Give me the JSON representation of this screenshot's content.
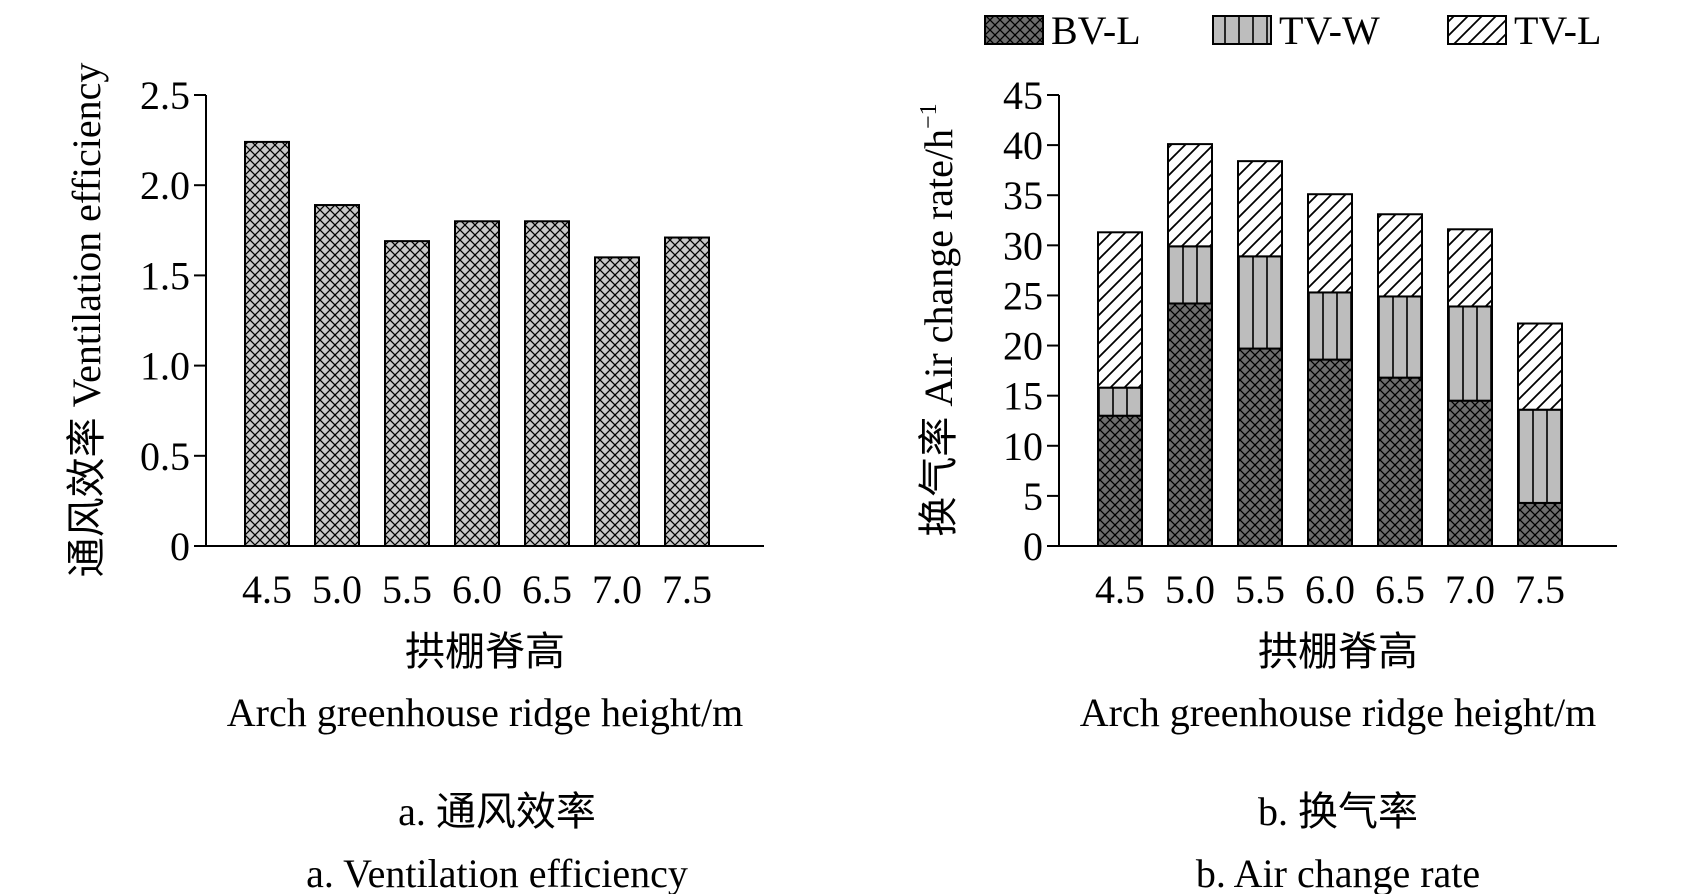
{
  "colors": {
    "bar_a_fill": "#c8c8c8",
    "bvl_fill": "#6e6e6e",
    "tvw_fill": "#bdbdbd",
    "tvl_fill": "#ffffff",
    "stroke": "#000000"
  },
  "chart_data": [
    {
      "id": "a",
      "type": "bar",
      "title": "a. 通风效率",
      "subtitle": "a. Ventilation efficiency",
      "xlabel_cn": "拱棚脊高",
      "xlabel_en": "Arch greenhouse ridge height/m",
      "ylabel": "通风效率 Ventilation efficiency",
      "categories": [
        "4.5",
        "5.0",
        "5.5",
        "6.0",
        "6.5",
        "7.0",
        "7.5"
      ],
      "values": [
        2.24,
        1.89,
        1.69,
        1.8,
        1.8,
        1.6,
        1.71
      ],
      "yticks": [
        "0",
        "0.5",
        "1.0",
        "1.5",
        "2.0",
        "2.5"
      ],
      "ylim": [
        0,
        2.5
      ]
    },
    {
      "id": "b",
      "type": "bar",
      "stacked": true,
      "title": "b. 换气率",
      "subtitle": "b. Air change rate",
      "xlabel_cn": "拱棚脊高",
      "xlabel_en": "Arch greenhouse ridge height/m",
      "ylabel": "换气率 Air change rate/h",
      "ylabel_sup": "−1",
      "categories": [
        "4.5",
        "5.0",
        "5.5",
        "6.0",
        "6.5",
        "7.0",
        "7.5"
      ],
      "series": [
        {
          "name": "BV-L",
          "values": [
            13.0,
            24.2,
            19.7,
            18.6,
            16.8,
            14.5,
            4.3
          ]
        },
        {
          "name": "TV-W",
          "values": [
            2.8,
            5.7,
            9.2,
            6.7,
            8.1,
            9.4,
            9.3
          ]
        },
        {
          "name": "TV-L",
          "values": [
            15.5,
            10.2,
            9.5,
            9.8,
            8.2,
            7.7,
            8.6
          ]
        }
      ],
      "legend_position": "top",
      "yticks": [
        "0",
        "5",
        "10",
        "15",
        "20",
        "25",
        "30",
        "35",
        "40",
        "45"
      ],
      "ylim": [
        0,
        45
      ]
    }
  ]
}
